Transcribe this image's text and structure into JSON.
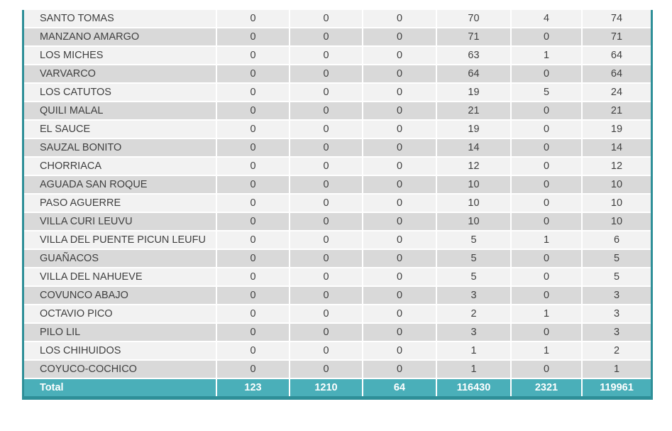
{
  "colors": {
    "total_row_fill": "#4aafb9",
    "outer_border": "#2e8f98",
    "row_light": "#f2f2f2",
    "row_dark": "#d9d9d9",
    "text": "#3f3f3f",
    "total_text": "#ffffff",
    "cell_separator": "#ffffff"
  },
  "chart_data": {
    "type": "table",
    "notes": "Table cropped at top; no column headers visible. 6 numeric columns per location row.",
    "rows": [
      {
        "name": "SANTO TOMAS",
        "values": [
          0,
          0,
          0,
          70,
          4,
          74
        ]
      },
      {
        "name": "MANZANO AMARGO",
        "values": [
          0,
          0,
          0,
          71,
          0,
          71
        ]
      },
      {
        "name": "LOS MICHES",
        "values": [
          0,
          0,
          0,
          63,
          1,
          64
        ]
      },
      {
        "name": "VARVARCO",
        "values": [
          0,
          0,
          0,
          64,
          0,
          64
        ]
      },
      {
        "name": "LOS CATUTOS",
        "values": [
          0,
          0,
          0,
          19,
          5,
          24
        ]
      },
      {
        "name": "QUILI MALAL",
        "values": [
          0,
          0,
          0,
          21,
          0,
          21
        ]
      },
      {
        "name": "EL SAUCE",
        "values": [
          0,
          0,
          0,
          19,
          0,
          19
        ]
      },
      {
        "name": "SAUZAL BONITO",
        "values": [
          0,
          0,
          0,
          14,
          0,
          14
        ]
      },
      {
        "name": "CHORRIACA",
        "values": [
          0,
          0,
          0,
          12,
          0,
          12
        ]
      },
      {
        "name": "AGUADA SAN ROQUE",
        "values": [
          0,
          0,
          0,
          10,
          0,
          10
        ]
      },
      {
        "name": "PASO AGUERRE",
        "values": [
          0,
          0,
          0,
          10,
          0,
          10
        ]
      },
      {
        "name": "VILLA CURI LEUVU",
        "values": [
          0,
          0,
          0,
          10,
          0,
          10
        ]
      },
      {
        "name": "VILLA DEL PUENTE PICUN LEUFU",
        "values": [
          0,
          0,
          0,
          5,
          1,
          6
        ]
      },
      {
        "name": "GUAÑACOS",
        "values": [
          0,
          0,
          0,
          5,
          0,
          5
        ]
      },
      {
        "name": "VILLA DEL NAHUEVE",
        "values": [
          0,
          0,
          0,
          5,
          0,
          5
        ]
      },
      {
        "name": "COVUNCO ABAJO",
        "values": [
          0,
          0,
          0,
          3,
          0,
          3
        ]
      },
      {
        "name": "OCTAVIO PICO",
        "values": [
          0,
          0,
          0,
          2,
          1,
          3
        ]
      },
      {
        "name": "PILO LIL",
        "values": [
          0,
          0,
          0,
          3,
          0,
          3
        ]
      },
      {
        "name": "LOS CHIHUIDOS",
        "values": [
          0,
          0,
          0,
          1,
          1,
          2
        ]
      },
      {
        "name": "COYUCO-COCHICO",
        "values": [
          0,
          0,
          0,
          1,
          0,
          1
        ]
      }
    ],
    "total": {
      "label": "Total",
      "values": [
        123,
        1210,
        64,
        116430,
        2321,
        119961
      ]
    }
  }
}
